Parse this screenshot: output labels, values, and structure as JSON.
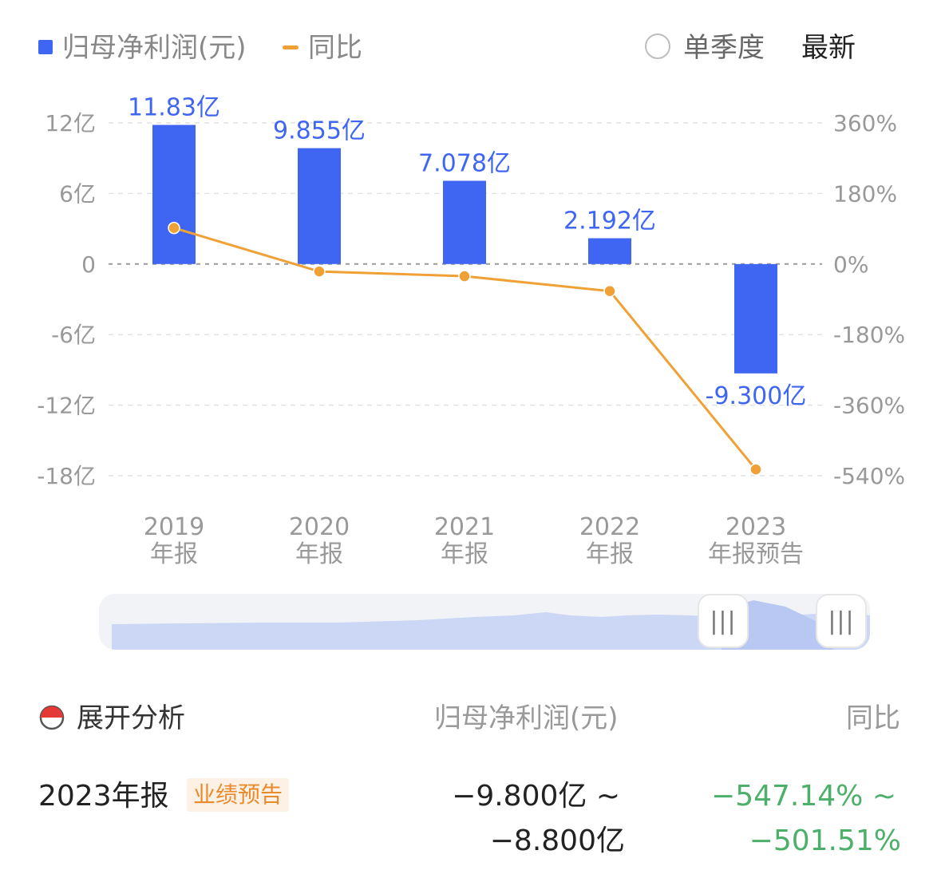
{
  "legend": {
    "bar_label": "归母净利润(元)",
    "line_label": "同比",
    "quarter_toggle_label": "单季度",
    "latest_label": "最新"
  },
  "colors": {
    "bar": "#3f66f2",
    "line": "#f0a136",
    "bar_label": "#3f66f2",
    "grid": "#dddddd",
    "positive_green": "#4caf6a"
  },
  "chart_data": {
    "type": "bar",
    "categories": [
      [
        "2019",
        "年报"
      ],
      [
        "2020",
        "年报"
      ],
      [
        "2021",
        "年报"
      ],
      [
        "2022",
        "年报"
      ],
      [
        "2023",
        "年报预告"
      ]
    ],
    "series": [
      {
        "name": "归母净利润(元)",
        "type": "bar",
        "axis": "left",
        "values": [
          11.83,
          9.855,
          7.078,
          2.192,
          -9.3
        ],
        "labels": [
          "11.83亿",
          "9.855亿",
          "7.078亿",
          "2.192亿",
          "-9.300亿"
        ]
      },
      {
        "name": "同比",
        "type": "line",
        "axis": "right",
        "values": [
          92,
          -19,
          -31,
          -69,
          -524
        ]
      }
    ],
    "left_axis": {
      "ticks": [
        12,
        6,
        0,
        -6,
        -12,
        -18
      ],
      "tick_labels": [
        "12亿",
        "6亿",
        "0",
        "-6亿",
        "-12亿",
        "-18亿"
      ],
      "ylim": [
        -18,
        12
      ]
    },
    "right_axis": {
      "ticks": [
        360,
        180,
        0,
        -180,
        -360,
        -540
      ],
      "tick_labels": [
        "360%",
        "180%",
        "0%",
        "-180%",
        "-360%",
        "-540%"
      ],
      "ylim": [
        -540,
        360
      ]
    },
    "grid": true,
    "legend_position": "top-left"
  },
  "analysis": {
    "title": "展开分析",
    "col_value_header": "归母净利润(元)",
    "col_pct_header": "同比",
    "rows": [
      {
        "label": "2023年报",
        "badge": "业绩预告",
        "value_line1": "−9.800亿 ~",
        "value_line2": "−8.800亿",
        "pct_line1": "−547.14% ~",
        "pct_line2": "−501.51%"
      }
    ]
  }
}
